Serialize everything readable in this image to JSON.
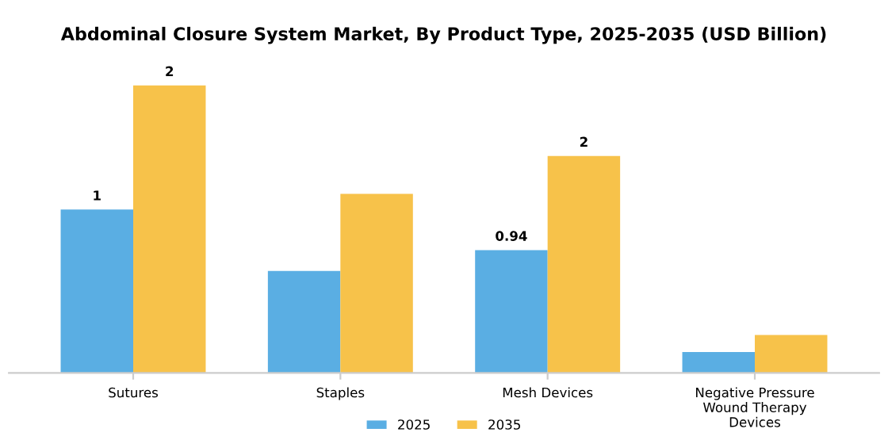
{
  "chart_data": {
    "type": "bar",
    "title": "Abdominal Closure System Market, By Product Type, 2025-2035 (USD Billion)",
    "categories": [
      "Sutures",
      "Staples",
      "Mesh Devices",
      "Negative Pressure\nWound Therapy\nDevices"
    ],
    "series": [
      {
        "name": "2025",
        "color": "#5aaee3",
        "values": [
          1.25,
          0.78,
          0.94,
          0.16
        ],
        "value_labels": [
          "1",
          null,
          "0.94",
          null
        ]
      },
      {
        "name": "2035",
        "color": "#f7c24a",
        "values": [
          2.2,
          1.37,
          1.66,
          0.29
        ],
        "value_labels": [
          "2",
          null,
          "2",
          null
        ]
      }
    ],
    "legend": "bottom",
    "grid": false
  }
}
